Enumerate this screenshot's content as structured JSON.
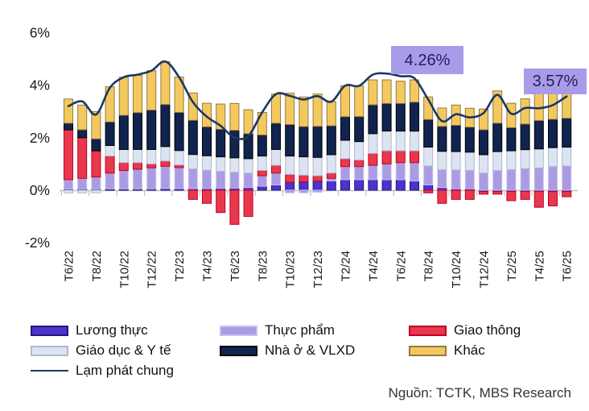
{
  "source": {
    "text": "Nguồn: TCTK, MBS Research"
  },
  "chart_data": {
    "type": "bar",
    "subtype": "stacked-bar-with-line",
    "title": "",
    "xlabel": "",
    "ylabel": "",
    "unit": "percentage points contribution to CPI YoY (%)",
    "gridlines": false,
    "legend_position": "bottom",
    "y_ticks": [
      6,
      4,
      2,
      0,
      -2
    ],
    "y_tick_suffix": "%",
    "ylim": [
      -2.6,
      6.2
    ],
    "categories": [
      "T6/22",
      "T7/22",
      "T8/22",
      "T9/22",
      "T10/22",
      "T11/22",
      "T12/22",
      "T1/23",
      "T2/23",
      "T3/23",
      "T4/23",
      "T5/23",
      "T6/23",
      "T7/23",
      "T8/23",
      "T9/23",
      "T10/23",
      "T11/23",
      "T12/23",
      "T1/24",
      "T2/24",
      "T3/24",
      "T4/24",
      "T5/24",
      "T6/24",
      "T7/24",
      "T8/24",
      "T9/24",
      "T10/24",
      "T11/24",
      "T12/24",
      "T1/25",
      "T2/25",
      "T3/25",
      "T4/25",
      "T5/25",
      "T6/25"
    ],
    "x_labels_every": 2,
    "series": [
      {
        "name": "Lương thực",
        "color": "#4F31CE",
        "border": "#1F1A78",
        "values": [
          0.05,
          0.05,
          0.05,
          0.05,
          0.05,
          0.05,
          0.05,
          0.06,
          0.06,
          0.06,
          0.06,
          0.07,
          0.08,
          0.1,
          0.15,
          0.2,
          0.3,
          0.32,
          0.35,
          0.35,
          0.4,
          0.4,
          0.4,
          0.4,
          0.4,
          0.35,
          0.2,
          0.1,
          0.05,
          0.05,
          -0.05,
          -0.05,
          -0.05,
          -0.05,
          -0.05,
          -0.05,
          -0.05
        ]
      },
      {
        "name": "Thực phẩm",
        "color": "#A99CE2",
        "border": "#C8BFF0",
        "values": [
          0.35,
          0.4,
          0.45,
          0.6,
          0.7,
          0.75,
          0.8,
          0.85,
          0.8,
          0.75,
          0.7,
          0.65,
          0.6,
          0.55,
          0.4,
          0.45,
          -0.1,
          -0.1,
          -0.08,
          0.1,
          0.5,
          0.5,
          0.55,
          0.6,
          0.65,
          0.7,
          0.72,
          0.68,
          0.72,
          0.7,
          0.65,
          0.75,
          0.78,
          0.82,
          0.85,
          0.9,
          0.92
        ]
      },
      {
        "name": "Giao thông",
        "color": "#E8384E",
        "border": "#C00021",
        "values": [
          1.9,
          1.55,
          1.0,
          0.65,
          0.3,
          0.25,
          0.15,
          0.2,
          0.1,
          -0.35,
          -0.5,
          -0.85,
          -1.3,
          -1.0,
          0.2,
          0.3,
          0.3,
          0.25,
          0.2,
          0.2,
          0.3,
          0.25,
          0.45,
          0.5,
          0.45,
          0.45,
          -0.1,
          -0.5,
          -0.35,
          -0.35,
          -0.1,
          -0.1,
          -0.35,
          -0.3,
          -0.6,
          -0.55,
          -0.2
        ]
      },
      {
        "name": "Giáo dục & Y tế",
        "color": "#DCE3F1",
        "border": "#AEB8D0",
        "values": [
          -0.1,
          -0.1,
          -0.1,
          0.4,
          0.5,
          0.5,
          0.55,
          0.55,
          0.55,
          0.55,
          0.55,
          0.55,
          0.55,
          0.55,
          0.55,
          0.6,
          0.7,
          0.7,
          0.7,
          0.7,
          0.7,
          0.7,
          0.75,
          0.75,
          0.75,
          0.75,
          0.72,
          0.7,
          0.7,
          0.7,
          0.7,
          0.72,
          0.72,
          0.72,
          0.72,
          0.72,
          0.72
        ]
      },
      {
        "name": "Nhà ở & VLXD",
        "color": "#10244F",
        "border": "#000000",
        "values": [
          0.25,
          0.3,
          0.45,
          0.9,
          1.3,
          1.4,
          1.5,
          1.6,
          1.45,
          1.3,
          1.1,
          1.05,
          1.05,
          0.95,
          0.8,
          1.0,
          1.2,
          1.15,
          1.18,
          1.1,
          0.9,
          0.95,
          1.1,
          1.05,
          1.05,
          1.1,
          1.05,
          0.95,
          1.0,
          0.95,
          0.95,
          1.08,
          0.88,
          0.98,
          1.08,
          1.08,
          1.1
        ]
      },
      {
        "name": "Khác",
        "color": "#F3C95F",
        "border": "#97783F",
        "values": [
          0.92,
          0.94,
          1.04,
          1.34,
          1.45,
          1.42,
          1.5,
          1.63,
          1.35,
          1.04,
          0.9,
          0.96,
          1.02,
          0.91,
          0.86,
          1.11,
          1.19,
          1.13,
          1.23,
          0.92,
          1.18,
          1.17,
          0.95,
          0.9,
          0.85,
          0.85,
          0.86,
          0.7,
          0.77,
          0.72,
          0.79,
          1.23,
          0.93,
          0.96,
          1.12,
          1.14,
          1.08
        ]
      }
    ],
    "line_series": {
      "name": "Lạm phát chung",
      "color": "#1B3766",
      "values": [
        3.2,
        3.38,
        2.88,
        3.9,
        4.3,
        4.4,
        4.55,
        4.9,
        4.3,
        3.35,
        2.8,
        2.45,
        2.0,
        2.06,
        2.96,
        3.66,
        3.59,
        3.45,
        3.58,
        3.37,
        3.98,
        3.97,
        4.4,
        4.44,
        4.34,
        4.26,
        3.45,
        2.63,
        2.89,
        2.77,
        2.94,
        3.63,
        2.91,
        3.13,
        3.12,
        3.24,
        3.57
      ]
    },
    "annotations": [
      {
        "label": "4.26%",
        "near_month": "T7/24"
      },
      {
        "label": "3.57%",
        "near_month": "T6/25"
      }
    ],
    "colors": {
      "annotation_bg": "#A89CE8",
      "annotation_text": "#23205F",
      "axis": "#C2C2C2",
      "tick_label": "#1A1A1A"
    }
  }
}
